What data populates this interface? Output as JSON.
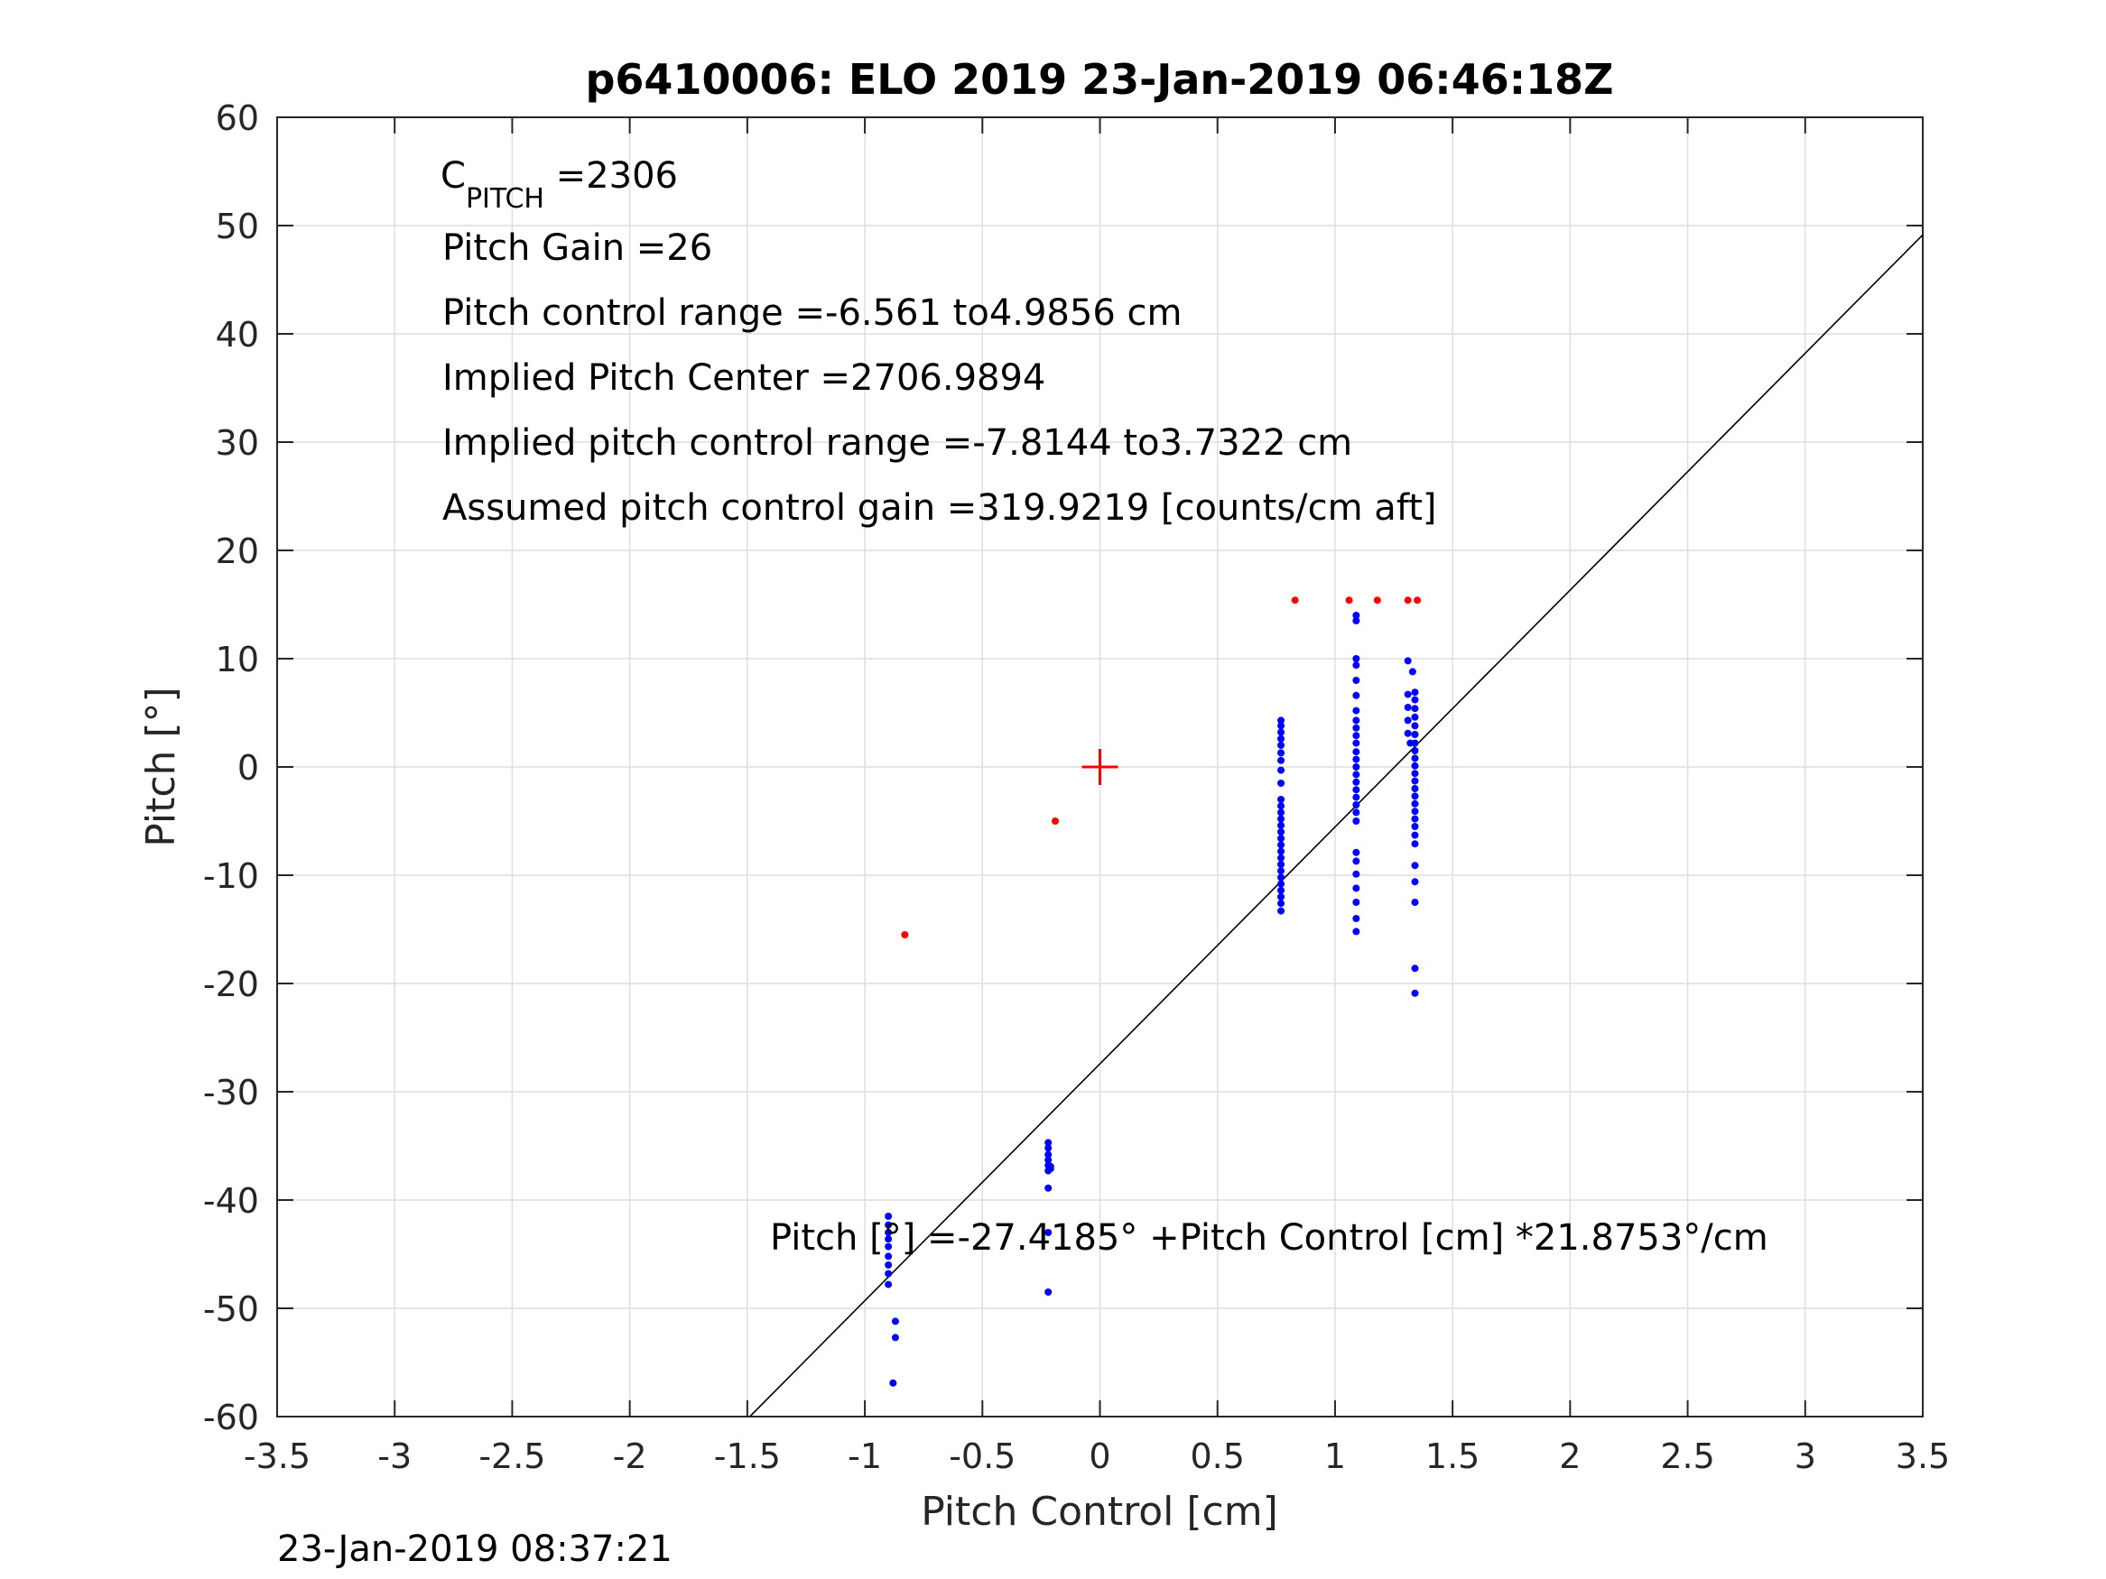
{
  "chart_data": {
    "type": "scatter",
    "title": "p6410006: ELO 2019 23-Jan-2019 06:46:18Z",
    "xlabel": "Pitch Control [cm]",
    "ylabel": "Pitch [°]",
    "xlim": [
      -3.5,
      3.5
    ],
    "ylim": [
      -60,
      60
    ],
    "grid": true,
    "x_ticks": [
      "-3.5",
      "-3",
      "-2.5",
      "-2",
      "-1.5",
      "-1",
      "-0.5",
      "0",
      "0.5",
      "1",
      "1.5",
      "2",
      "2.5",
      "3",
      "3.5"
    ],
    "y_ticks": [
      "60",
      "50",
      "40",
      "30",
      "20",
      "10",
      "0",
      "-10",
      "-20",
      "-30",
      "-40",
      "-50",
      "-60"
    ],
    "annotations": {
      "c_pitch_symbol": "C",
      "c_pitch_subscript": "PITCH",
      "c_pitch_value": " =2306",
      "pitch_gain": "Pitch Gain =26",
      "control_range": "Pitch control range =-6.561 to4.9856 cm",
      "implied_center": "Implied Pitch Center =2706.9894",
      "implied_range": "Implied pitch control range =-7.8144 to3.7322 cm",
      "assumed_gain": "Assumed pitch control gain =319.9219 [counts/cm aft]",
      "fit_equation": "Pitch [°] =-27.4185° +Pitch Control [cm] *21.8753°/cm"
    },
    "fit_line": {
      "intercept": -27.4185,
      "slope": 21.8753,
      "color": "#000000"
    },
    "center_marker": {
      "x": 0,
      "y": 0,
      "color": "#ff0000"
    },
    "series": [
      {
        "color": "#0000ff",
        "points": [
          [
            -0.9,
            -41.5
          ],
          [
            -0.9,
            -42.3
          ],
          [
            -0.9,
            -43.0
          ],
          [
            -0.9,
            -43.6
          ],
          [
            -0.9,
            -44.3
          ],
          [
            -0.9,
            -45.2
          ],
          [
            -0.9,
            -46.0
          ],
          [
            -0.9,
            -46.8
          ],
          [
            -0.9,
            -47.8
          ],
          [
            -0.87,
            -51.2
          ],
          [
            -0.87,
            -52.7
          ],
          [
            -0.88,
            -56.9
          ],
          [
            -0.22,
            -34.7
          ],
          [
            -0.22,
            -35.2
          ],
          [
            -0.22,
            -35.8
          ],
          [
            -0.22,
            -36.3
          ],
          [
            -0.22,
            -36.8
          ],
          [
            -0.22,
            -37.3
          ],
          [
            -0.21,
            -36.9
          ],
          [
            -0.21,
            -37.1
          ],
          [
            -0.22,
            -38.9
          ],
          [
            -0.22,
            -43.0
          ],
          [
            -0.22,
            -48.5
          ],
          [
            0.77,
            4.3
          ],
          [
            0.77,
            3.8
          ],
          [
            0.77,
            3.2
          ],
          [
            0.77,
            2.6
          ],
          [
            0.77,
            2.0
          ],
          [
            0.77,
            1.3
          ],
          [
            0.77,
            0.6
          ],
          [
            0.77,
            -0.3
          ],
          [
            0.77,
            -1.5
          ],
          [
            0.77,
            -3.0
          ],
          [
            0.77,
            -3.6
          ],
          [
            0.77,
            -4.2
          ],
          [
            0.77,
            -4.8
          ],
          [
            0.77,
            -5.4
          ],
          [
            0.77,
            -6.0
          ],
          [
            0.77,
            -6.6
          ],
          [
            0.77,
            -7.2
          ],
          [
            0.77,
            -7.8
          ],
          [
            0.77,
            -8.4
          ],
          [
            0.77,
            -9.0
          ],
          [
            0.77,
            -9.6
          ],
          [
            0.77,
            -10.2
          ],
          [
            0.77,
            -10.8
          ],
          [
            0.77,
            -11.4
          ],
          [
            0.77,
            -12.0
          ],
          [
            0.77,
            -12.6
          ],
          [
            0.77,
            -13.3
          ],
          [
            1.09,
            14.0
          ],
          [
            1.09,
            13.5
          ],
          [
            1.09,
            10.0
          ],
          [
            1.09,
            9.4
          ],
          [
            1.09,
            8.0
          ],
          [
            1.09,
            6.6
          ],
          [
            1.09,
            5.2
          ],
          [
            1.09,
            4.3
          ],
          [
            1.09,
            3.6
          ],
          [
            1.09,
            2.9
          ],
          [
            1.09,
            2.2
          ],
          [
            1.09,
            1.4
          ],
          [
            1.09,
            0.7
          ],
          [
            1.09,
            0.0
          ],
          [
            1.09,
            -0.7
          ],
          [
            1.09,
            -1.4
          ],
          [
            1.09,
            -2.1
          ],
          [
            1.09,
            -2.8
          ],
          [
            1.09,
            -3.5
          ],
          [
            1.09,
            -4.2
          ],
          [
            1.09,
            -5.0
          ],
          [
            1.09,
            -7.9
          ],
          [
            1.09,
            -8.7
          ],
          [
            1.09,
            -9.9
          ],
          [
            1.09,
            -11.2
          ],
          [
            1.09,
            -12.5
          ],
          [
            1.09,
            -14.0
          ],
          [
            1.09,
            -15.2
          ],
          [
            1.31,
            9.8
          ],
          [
            1.33,
            8.8
          ],
          [
            1.31,
            6.7
          ],
          [
            1.31,
            5.5
          ],
          [
            1.31,
            4.3
          ],
          [
            1.31,
            3.1
          ],
          [
            1.32,
            2.2
          ],
          [
            1.34,
            6.9
          ],
          [
            1.34,
            6.2
          ],
          [
            1.34,
            5.4
          ],
          [
            1.34,
            4.6
          ],
          [
            1.34,
            3.8
          ],
          [
            1.34,
            3.0
          ],
          [
            1.34,
            2.2
          ],
          [
            1.34,
            1.5
          ],
          [
            1.34,
            0.8
          ],
          [
            1.34,
            0.1
          ],
          [
            1.34,
            -0.6
          ],
          [
            1.34,
            -1.3
          ],
          [
            1.34,
            -2.0
          ],
          [
            1.34,
            -2.7
          ],
          [
            1.34,
            -3.4
          ],
          [
            1.34,
            -4.1
          ],
          [
            1.34,
            -4.8
          ],
          [
            1.34,
            -5.5
          ],
          [
            1.34,
            -6.3
          ],
          [
            1.34,
            -7.1
          ],
          [
            1.34,
            -9.1
          ],
          [
            1.34,
            -10.6
          ],
          [
            1.34,
            -12.5
          ],
          [
            1.34,
            -18.6
          ],
          [
            1.34,
            -20.9
          ]
        ]
      },
      {
        "color": "#ff0000",
        "points": [
          [
            -0.83,
            -15.5
          ],
          [
            -0.19,
            -5.0
          ],
          [
            0.83,
            15.4
          ],
          [
            1.06,
            15.4
          ],
          [
            1.18,
            15.4
          ],
          [
            1.31,
            15.4
          ],
          [
            1.35,
            15.4
          ]
        ]
      }
    ]
  },
  "timestamp": "23-Jan-2019 08:37:21"
}
